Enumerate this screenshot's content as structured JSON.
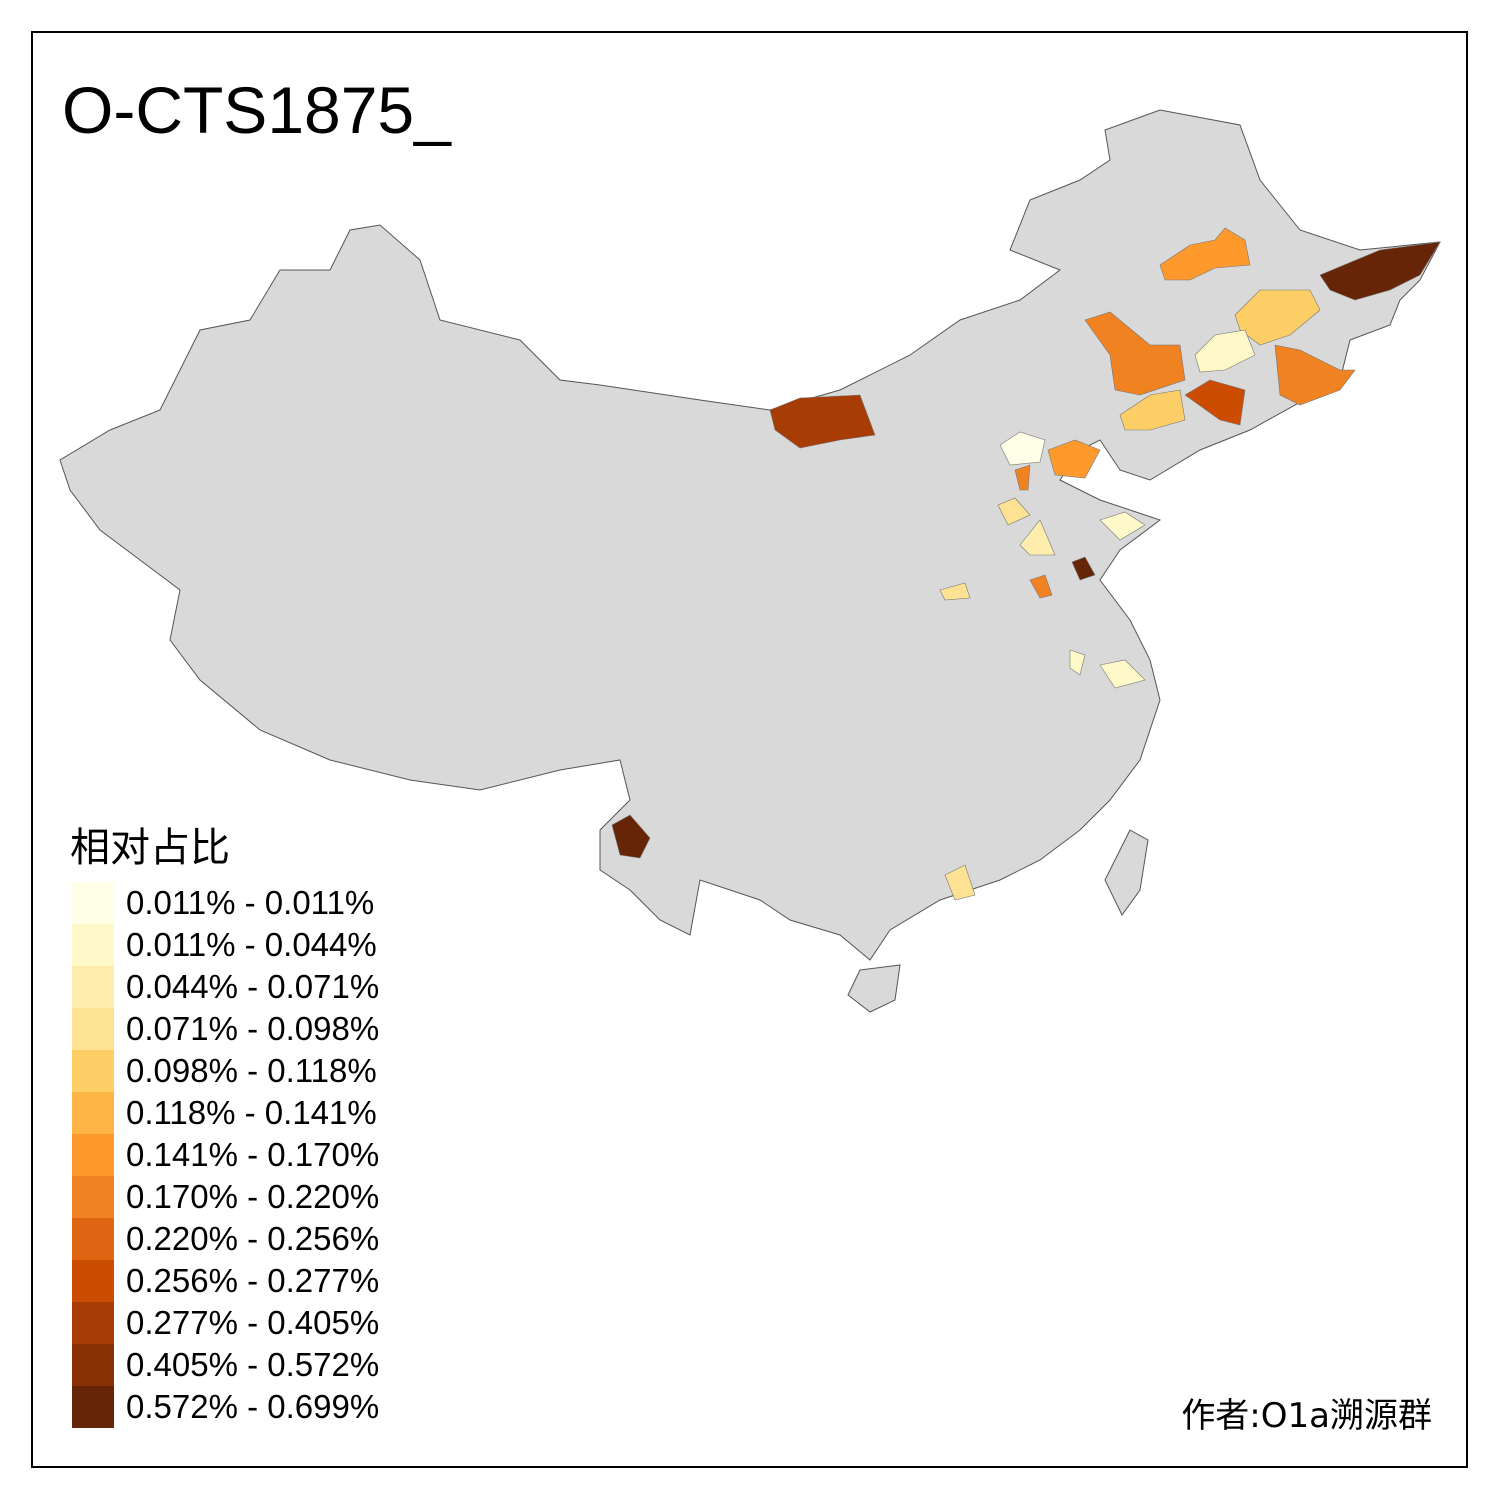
{
  "title": "O-CTS1875_",
  "legend": {
    "title": "相对占比",
    "items": [
      {
        "label": "0.011% - 0.011%",
        "color": "#FFFEE6"
      },
      {
        "label": "0.011% - 0.044%",
        "color": "#FFF8C9"
      },
      {
        "label": "0.044% - 0.071%",
        "color": "#FEEDAD"
      },
      {
        "label": "0.071% - 0.098%",
        "color": "#FEE293"
      },
      {
        "label": "0.098% - 0.118%",
        "color": "#FECE66"
      },
      {
        "label": "0.118% - 0.141%",
        "color": "#FEB545"
      },
      {
        "label": "0.141% - 0.170%",
        "color": "#FE9A2D"
      },
      {
        "label": "0.170% - 0.220%",
        "color": "#F18221"
      },
      {
        "label": "0.220% - 0.256%",
        "color": "#E06513"
      },
      {
        "label": "0.256% - 0.277%",
        "color": "#CC4C02"
      },
      {
        "label": "0.277% - 0.405%",
        "color": "#A83C05"
      },
      {
        "label": "0.405% - 0.572%",
        "color": "#8A3006"
      },
      {
        "label": "0.572% - 0.699%",
        "color": "#662506"
      }
    ]
  },
  "author": "作者:O1a溯源群",
  "colors": {
    "no_data": "#D9D9D9",
    "border": "#555555"
  }
}
